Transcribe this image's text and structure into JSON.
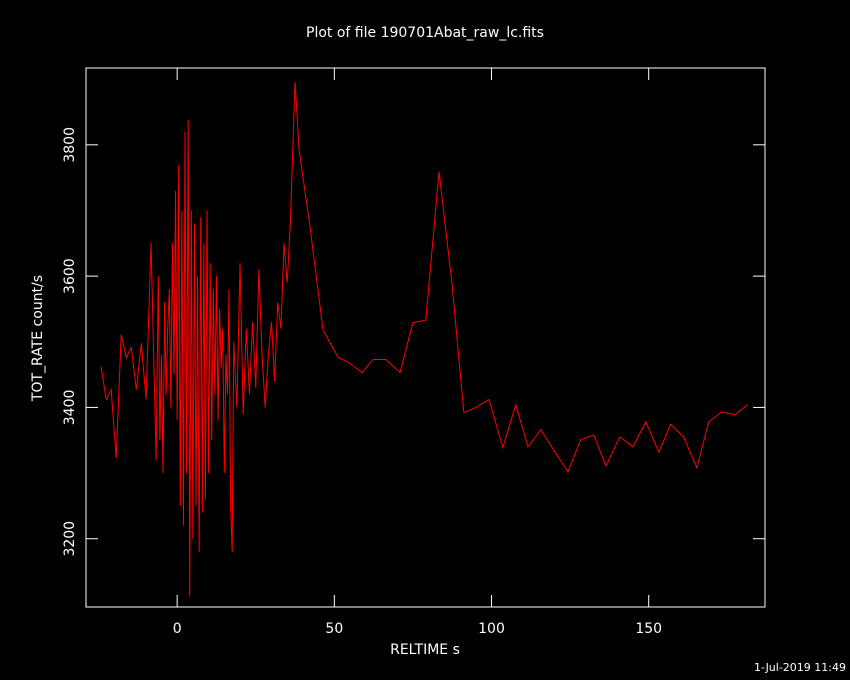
{
  "chart_data": {
    "type": "line",
    "title": "Plot of file 190701Abat_raw_lc.fits",
    "x_label": "RELTIME  s",
    "y_label": "TOT_RATE  count/s",
    "timestamp": "1-Jul-2019 11:49",
    "x": [
      -24.2,
      -22.6,
      -21,
      -19.4,
      -17.8,
      -16.2,
      -14.6,
      -13,
      -11.4,
      -9.9,
      -8.3,
      -6.7,
      -6,
      -5.5,
      -5,
      -4.5,
      -4,
      -3.5,
      -3,
      -2.5,
      -2,
      -1.5,
      -1,
      -0.5,
      0,
      0.5,
      1,
      1.5,
      2,
      2.5,
      3,
      3.5,
      4,
      4.5,
      5,
      5.5,
      6,
      6.5,
      7,
      7.5,
      8,
      8.5,
      9,
      9.5,
      10,
      10.5,
      11,
      11.5,
      12,
      12.5,
      13,
      13.5,
      14,
      14.5,
      15,
      15.5,
      16,
      16.5,
      17,
      17.5,
      18,
      19,
      20,
      21,
      22,
      23,
      24,
      25,
      26,
      27,
      28,
      29,
      30,
      31,
      32,
      33,
      34,
      35,
      36,
      37.5,
      38.8,
      42.3,
      46.4,
      51.2,
      54.4,
      58.8,
      62.3,
      66.4,
      70.9,
      75,
      79.1,
      83.3,
      87.4,
      91.2,
      95,
      99.2,
      103.6,
      107.7,
      111.6,
      115.7,
      119.8,
      124.3,
      128.4,
      132.5,
      136.4,
      140.8,
      145,
      149.1,
      153.2,
      157,
      161.1,
      165.3,
      169.1,
      173.2,
      177.4,
      181.5
    ],
    "series": [
      {
        "name": "TOT_RATE",
        "color": "#ff0000",
        "values": [
          3462,
          3412,
          3427,
          3323,
          3511,
          3476,
          3491,
          3427,
          3498,
          3412,
          3651,
          3320,
          3600,
          3350,
          3480,
          3300,
          3560,
          3420,
          3520,
          3580,
          3400,
          3650,
          3450,
          3730,
          3380,
          3770,
          3250,
          3700,
          3220,
          3820,
          3300,
          3838,
          3112,
          3700,
          3200,
          3680,
          3250,
          3600,
          3180,
          3690,
          3240,
          3650,
          3260,
          3700,
          3300,
          3620,
          3350,
          3580,
          3420,
          3600,
          3380,
          3550,
          3460,
          3520,
          3300,
          3480,
          3420,
          3580,
          3250,
          3180,
          3500,
          3400,
          3620,
          3390,
          3520,
          3420,
          3530,
          3430,
          3610,
          3480,
          3400,
          3480,
          3530,
          3440,
          3560,
          3520,
          3650,
          3590,
          3680,
          3896,
          3792,
          3674,
          3518,
          3476,
          3469,
          3453,
          3473,
          3473,
          3453,
          3529,
          3533,
          3759,
          3590,
          3392,
          3400,
          3412,
          3339,
          3404,
          3340,
          3366,
          3335,
          3302,
          3351,
          3358,
          3311,
          3355,
          3340,
          3378,
          3332,
          3374,
          3355,
          3308,
          3378,
          3393,
          3389,
          3404
        ]
      }
    ],
    "xlim": [
      -29,
      187
    ],
    "ylim": [
      3096,
      3917
    ],
    "xticks": [
      0,
      50,
      100,
      150
    ],
    "yticks": [
      3200,
      3400,
      3600,
      3800
    ]
  }
}
